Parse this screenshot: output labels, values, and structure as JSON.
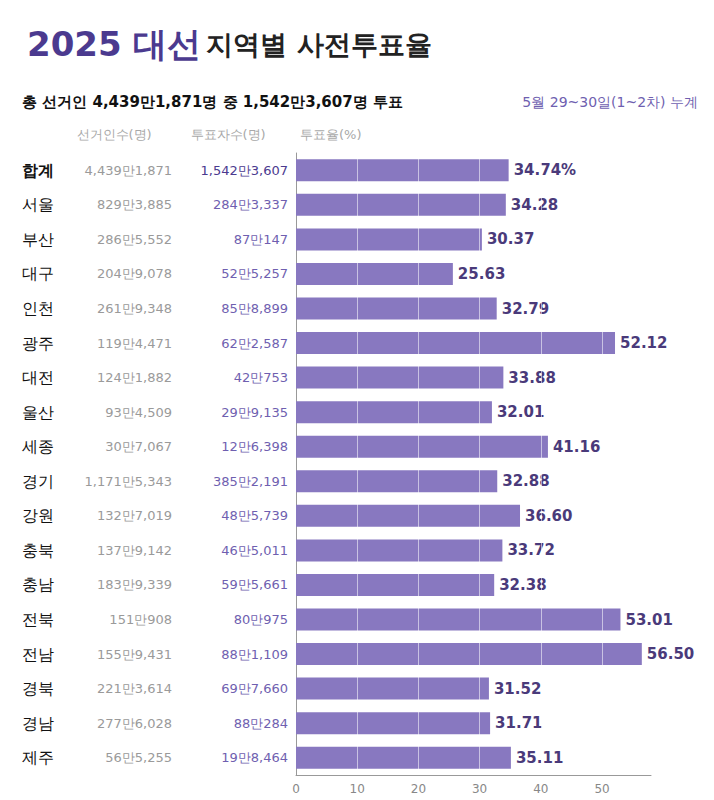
{
  "chart_data": {
    "type": "bar",
    "orientation": "horizontal",
    "title": "2025 대선 지역별 사전투표율",
    "subtitle": "총 선거인 4,439만1,871명 중 1,542만3,607명 투표",
    "annotations": [
      "5월 29~30일(1~2차) 누계"
    ],
    "xlabel": "투표율(%)",
    "categories": [
      "합계",
      "서울",
      "부산",
      "대구",
      "인천",
      "광주",
      "대전",
      "울산",
      "세종",
      "경기",
      "강원",
      "충북",
      "충남",
      "전북",
      "전남",
      "경북",
      "경남",
      "제주"
    ],
    "values": [
      34.74,
      34.28,
      30.37,
      25.63,
      32.79,
      52.12,
      33.88,
      32.01,
      41.16,
      32.88,
      36.6,
      33.72,
      32.38,
      53.01,
      56.5,
      31.52,
      31.71,
      35.11
    ],
    "value_labels": [
      "34.74%",
      "34.28",
      "30.37",
      "25.63",
      "32.79",
      "52.12",
      "33.88",
      "32.01",
      "41.16",
      "32.88",
      "36.60",
      "33.72",
      "32.38",
      "53.01",
      "56.50",
      "31.52",
      "31.71",
      "35.11"
    ],
    "columns": [
      {
        "name": "선거인수(명)",
        "values": [
          "4,439만1,871",
          "829만3,885",
          "286만5,552",
          "204만9,078",
          "261만9,348",
          "119만4,471",
          "124만1,882",
          "93만4,509",
          "30만7,067",
          "1,171만5,343",
          "132만7,019",
          "137만9,142",
          "183만9,339",
          "151만908",
          "155만9,431",
          "221만3,614",
          "277만6,028",
          "56만5,255"
        ]
      },
      {
        "name": "투표자수(명)",
        "values": [
          "1,542만3,607",
          "284만3,337",
          "87만147",
          "52만5,257",
          "85만8,899",
          "62만2,587",
          "42만753",
          "29만9,135",
          "12만6,398",
          "385만2,191",
          "48만5,739",
          "46만5,011",
          "59만5,661",
          "80만975",
          "88만1,109",
          "69만7,660",
          "88만284",
          "19만8,464"
        ]
      }
    ],
    "color": "#8878c0",
    "xlim": [
      0,
      58
    ],
    "xticks": [
      0,
      10,
      20,
      30,
      40,
      50
    ],
    "grid": true,
    "data_labels": true
  }
}
